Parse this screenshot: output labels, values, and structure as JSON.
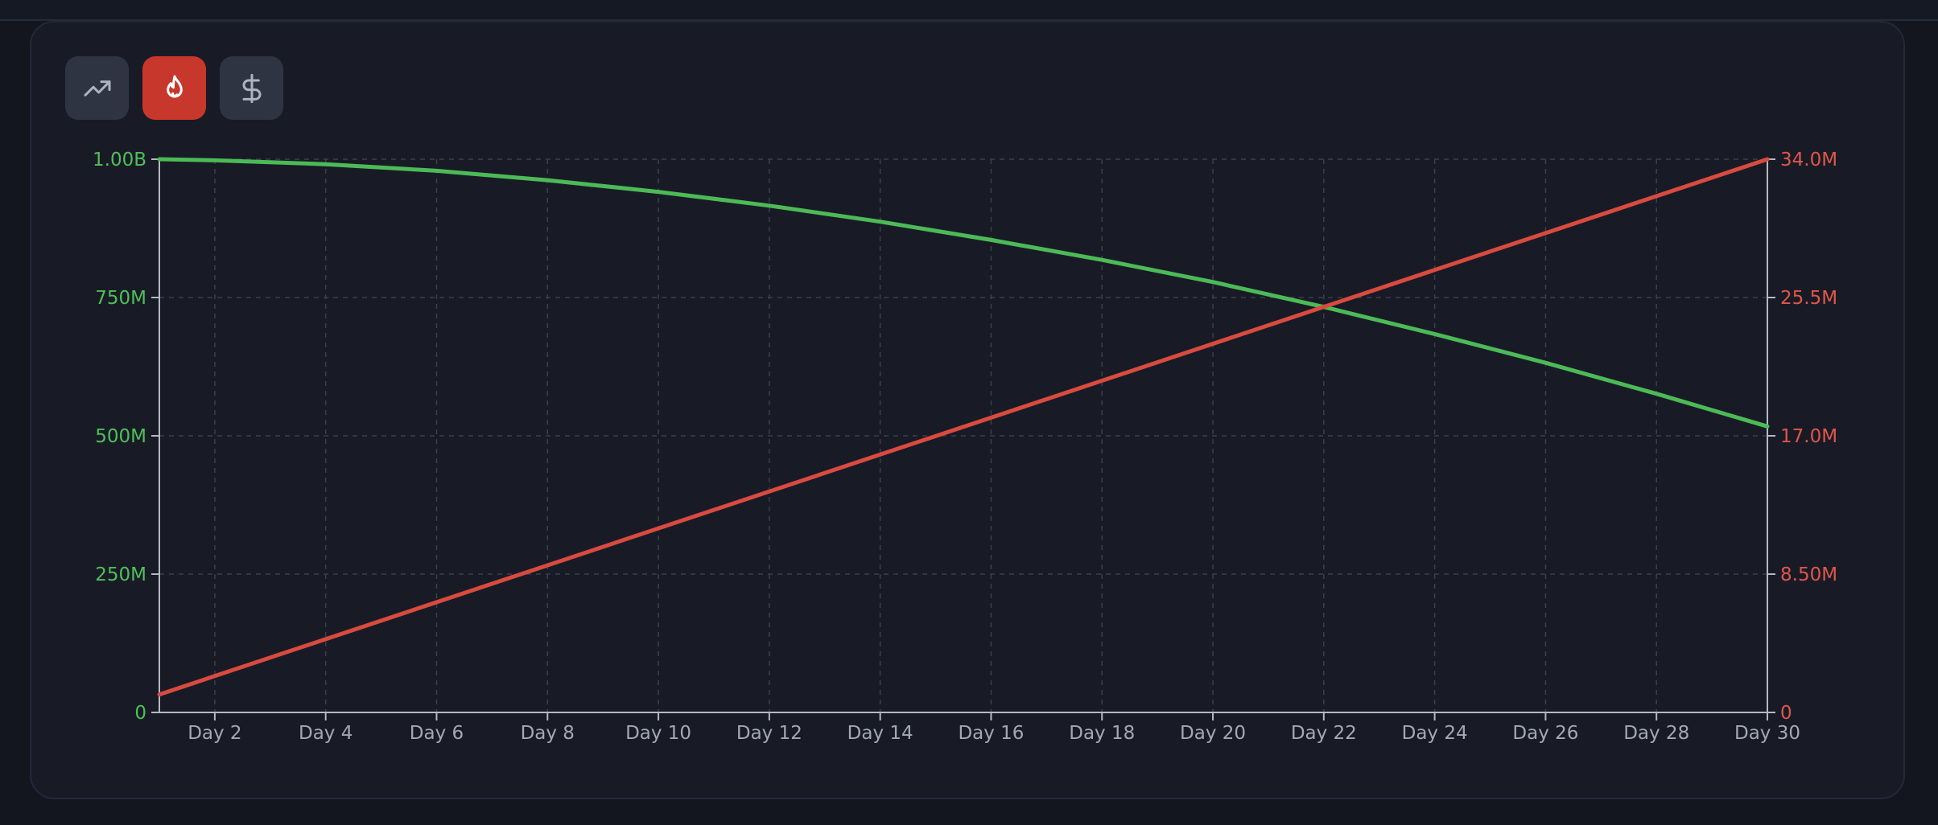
{
  "toolbar": {
    "buttons": [
      {
        "icon": "trend-up-icon",
        "active": false
      },
      {
        "icon": "flame-icon",
        "active": true
      },
      {
        "icon": "dollar-icon",
        "active": false
      }
    ]
  },
  "colors": {
    "series_green": "#4cba57",
    "series_red": "#d94a3f",
    "active_button": "#c8372b"
  },
  "chart_data": {
    "type": "line",
    "x_tick_labels": [
      "Day 2",
      "Day 4",
      "Day 6",
      "Day 8",
      "Day 10",
      "Day 12",
      "Day 14",
      "Day 16",
      "Day 18",
      "Day 20",
      "Day 22",
      "Day 24",
      "Day 26",
      "Day 28",
      "Day 30"
    ],
    "x_tick_days": [
      2,
      4,
      6,
      8,
      10,
      12,
      14,
      16,
      18,
      20,
      22,
      24,
      26,
      28,
      30
    ],
    "x_range_days": [
      1,
      30
    ],
    "y_left": {
      "range": [
        0,
        1000000000
      ],
      "ticks": [
        0,
        250000000,
        500000000,
        750000000,
        1000000000
      ],
      "tick_labels": [
        "0",
        "250M",
        "500M",
        "750M",
        "1.00B"
      ]
    },
    "y_right": {
      "range": [
        0,
        34000000
      ],
      "ticks": [
        0,
        8500000,
        17000000,
        25500000,
        34000000
      ],
      "tick_labels": [
        "0",
        "8.50M",
        "17.0M",
        "25.5M",
        "34.0M"
      ]
    },
    "grid": true,
    "series": [
      {
        "axis": "left",
        "color": "#4cba57",
        "x": [
          1,
          2,
          4,
          6,
          8,
          10,
          12,
          14,
          16,
          18,
          20,
          22,
          24,
          26,
          28,
          30
        ],
        "y": [
          1000000000,
          998000000,
          991000000,
          979000000,
          962000000,
          941000000,
          916000000,
          887000000,
          854000000,
          818000000,
          778000000,
          733000000,
          684000000,
          632000000,
          576000000,
          517000000
        ]
      },
      {
        "axis": "right",
        "color": "#d94a3f",
        "x": [
          1,
          30
        ],
        "y": [
          1100000,
          34000000
        ]
      }
    ]
  }
}
